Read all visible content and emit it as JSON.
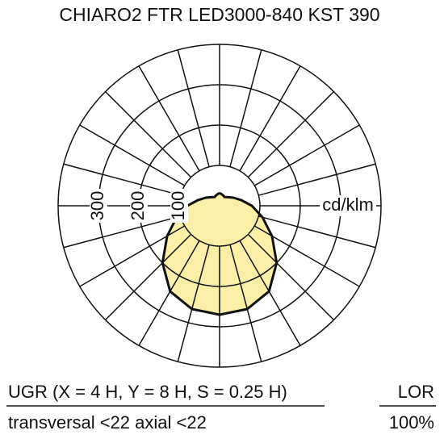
{
  "chart_data": {
    "type": "polar",
    "title": "CHIARO2 FTR LED3000-840 KST 390",
    "unit_label": "cd/klm",
    "rlim": [
      0,
      400
    ],
    "rticks": [
      100,
      200,
      300
    ],
    "series": [
      {
        "color": "#fbefa8",
        "angles": [
          0,
          15,
          30,
          45,
          60,
          75,
          90,
          105,
          120,
          135,
          150,
          165,
          180
        ],
        "values": [
          270,
          265,
          245,
          200,
          150,
          110,
          80,
          55,
          40,
          30,
          25,
          28,
          32
        ]
      }
    ]
  },
  "footer": {
    "ugr": "UGR  (X = 4 H, Y = 8 H, S = 0.25 H)",
    "ugr_values": "transversal <22 axial <22",
    "lor_label": "LOR",
    "lor_value": "100%"
  }
}
